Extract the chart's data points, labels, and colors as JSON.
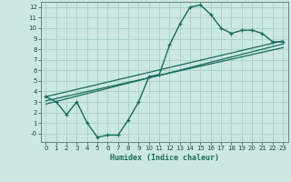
{
  "background_color": "#cce8e4",
  "grid_color": "#aad4cc",
  "line_color": "#1a6b5a",
  "xlabel": "Humidex (Indice chaleur)",
  "xlim": [
    -0.5,
    23.5
  ],
  "ylim": [
    -0.8,
    12.5
  ],
  "xticks": [
    0,
    1,
    2,
    3,
    4,
    5,
    6,
    7,
    8,
    9,
    10,
    11,
    12,
    13,
    14,
    15,
    16,
    17,
    18,
    19,
    20,
    21,
    22,
    23
  ],
  "yticks": [
    0,
    1,
    2,
    3,
    4,
    5,
    6,
    7,
    8,
    9,
    10,
    11,
    12
  ],
  "main_x": [
    0,
    1,
    2,
    3,
    4,
    5,
    6,
    7,
    8,
    9,
    10,
    11,
    12,
    13,
    14,
    15,
    16,
    17,
    18,
    19,
    20,
    21,
    22,
    23
  ],
  "main_y": [
    3.5,
    3.0,
    1.8,
    3.0,
    1.0,
    -0.35,
    -0.15,
    -0.15,
    1.3,
    3.0,
    5.4,
    5.6,
    8.4,
    10.4,
    12.0,
    12.2,
    11.3,
    10.0,
    9.5,
    9.8,
    9.8,
    9.5,
    8.7,
    8.7
  ],
  "trend1_x": [
    0,
    23
  ],
  "trend1_y": [
    3.5,
    8.8
  ],
  "trend2_x": [
    0,
    23
  ],
  "trend2_y": [
    2.8,
    8.5
  ],
  "trend3_x": [
    0,
    23
  ],
  "trend3_y": [
    3.1,
    8.15
  ]
}
